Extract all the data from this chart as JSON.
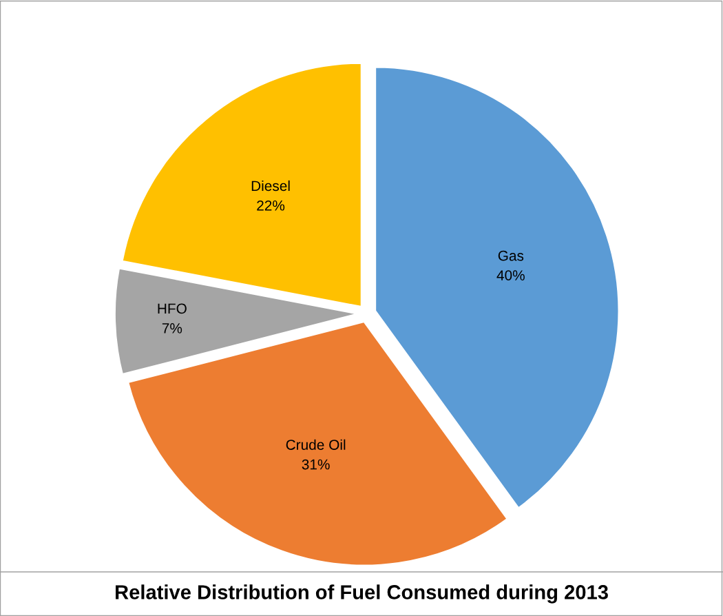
{
  "chart_data": {
    "type": "pie",
    "title": "Relative Distribution of Fuel Consumed during 2013",
    "categories": [
      "Gas",
      "Crude Oil",
      "HFO",
      "Diesel"
    ],
    "values": [
      40,
      31,
      7,
      22
    ],
    "colors": [
      "#5b9bd5",
      "#ed7d31",
      "#a5a5a5",
      "#ffc000"
    ],
    "value_labels": [
      "40%",
      "31%",
      "7%",
      "22%"
    ],
    "legend": false
  }
}
